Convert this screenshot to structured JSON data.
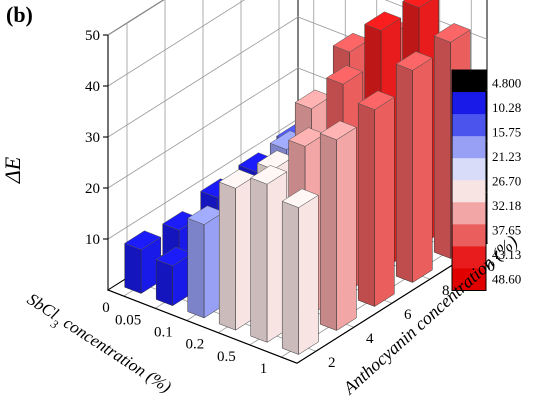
{
  "panel_label": "(b)",
  "chart_data": {
    "type": "bar3d",
    "title": "",
    "zlabel": "ΔE",
    "zlim": [
      0,
      50
    ],
    "z_ticks": [
      "10",
      "20",
      "30",
      "40",
      "50"
    ],
    "xlabel_main": "SbCl",
    "xlabel_sub": "3",
    "xlabel_tail": " concentration (%)",
    "ylabel": "Anthocyanin concentration (%)",
    "x_categories": [
      "0",
      "0.05",
      "0.1",
      "0.2",
      "0.5",
      "1"
    ],
    "y_categories": [
      "2",
      "4",
      "6",
      "8",
      "10"
    ],
    "values": [
      [
        8.6,
        7.7,
        9.4,
        9.8,
        10.8
      ],
      [
        7.8,
        9.4,
        12.3,
        16.5,
        15.0
      ],
      [
        18.3,
        14.4,
        19.0,
        22.8,
        25.0
      ],
      [
        27.8,
        26.8,
        34.0,
        40.4,
        38.6
      ],
      [
        31.0,
        33.7,
        41.2,
        47.0,
        46.8
      ],
      [
        28.8,
        37.4,
        38.6,
        41.6,
        42.4
      ]
    ],
    "colorbar": {
      "labels": [
        "4.800",
        "10.28",
        "15.75",
        "21.23",
        "26.70",
        "32.18",
        "37.65",
        "43.13",
        "48.60"
      ],
      "colors": [
        "#000000",
        "#1a1ae8",
        "#4b55ee",
        "#97a0f4",
        "#d8dcf8",
        "#f9e4e4",
        "#f2a6a6",
        "#ea5e5e",
        "#e81c1c",
        "#e00000"
      ]
    },
    "grid": true,
    "legend_position": "right"
  }
}
